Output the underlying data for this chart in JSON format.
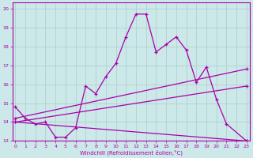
{
  "title": "",
  "xlabel": "Windchill (Refroidissement éolien,°C)",
  "bg_color": "#cce8e8",
  "line_color": "#aa00aa",
  "grid_color": "#aacccc",
  "x_hours": [
    0,
    1,
    2,
    3,
    4,
    5,
    6,
    7,
    8,
    9,
    10,
    11,
    12,
    13,
    14,
    15,
    16,
    17,
    18,
    19,
    20,
    21,
    22,
    23
  ],
  "series1": [
    14.8,
    14.2,
    13.9,
    14.0,
    13.2,
    13.2,
    13.7,
    15.9,
    15.5,
    16.4,
    17.1,
    18.5,
    19.7,
    19.7,
    17.7,
    18.1,
    18.5,
    17.8,
    16.1,
    16.9,
    15.2,
    13.9,
    null,
    13.0
  ],
  "line2_x": [
    0,
    23
  ],
  "line2_y": [
    14.0,
    13.0
  ],
  "line3_x": [
    0,
    23
  ],
  "line3_y": [
    14.2,
    16.8
  ],
  "line4_x": [
    0,
    23
  ],
  "line4_y": [
    14.0,
    15.9
  ],
  "xlim": [
    -0.3,
    23.3
  ],
  "ylim": [
    13,
    20.3
  ],
  "yticks": [
    13,
    14,
    15,
    16,
    17,
    18,
    19,
    20
  ],
  "xticks": [
    0,
    1,
    2,
    3,
    4,
    5,
    6,
    7,
    8,
    9,
    10,
    11,
    12,
    13,
    14,
    15,
    16,
    17,
    18,
    19,
    20,
    21,
    22,
    23
  ],
  "tick_fontsize": 4.5,
  "xlabel_fontsize": 5.0
}
